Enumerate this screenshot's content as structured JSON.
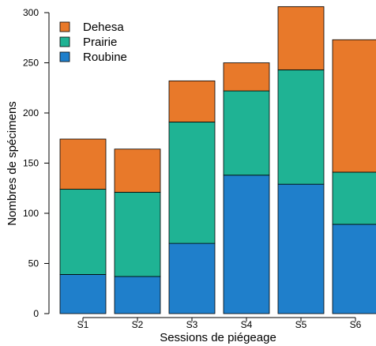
{
  "chart_data": {
    "type": "bar",
    "stacked": true,
    "title": "",
    "xlabel": "Sessions de piégeage",
    "ylabel": "Nombres de spécimens",
    "ylim": [
      0,
      300
    ],
    "yticks": [
      0,
      50,
      100,
      150,
      200,
      250,
      300
    ],
    "categories": [
      "S1",
      "S2",
      "S3",
      "S4",
      "S5",
      "S6"
    ],
    "series": [
      {
        "name": "Roubine",
        "color": "#1f7fcb",
        "values": [
          39,
          37,
          70,
          138,
          129,
          89
        ]
      },
      {
        "name": "Prairie",
        "color": "#1fb394",
        "values": [
          85,
          84,
          121,
          84,
          114,
          52
        ]
      },
      {
        "name": "Dehesa",
        "color": "#e8792a",
        "values": [
          50,
          43,
          41,
          28,
          63,
          132
        ]
      }
    ],
    "legend": {
      "position": "top-left",
      "order": [
        "Dehesa",
        "Prairie",
        "Roubine"
      ]
    },
    "grid": false
  }
}
